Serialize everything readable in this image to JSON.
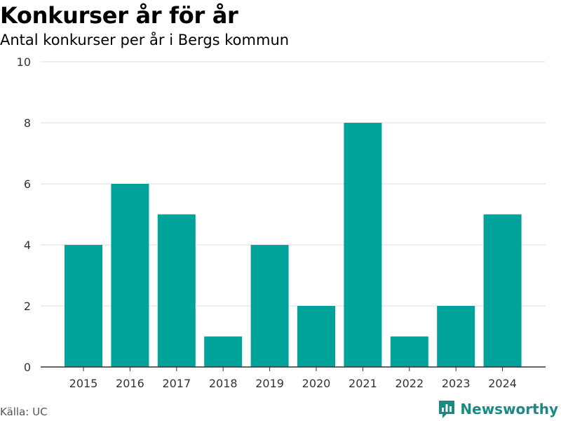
{
  "header": {
    "title": "Konkurser år för år",
    "subtitle": "Antal konkurser per år i Bergs kommun"
  },
  "footer": {
    "source": "Källa: UC",
    "brand": "Newsworthy",
    "brand_color": "#1a8a82"
  },
  "chart_data": {
    "type": "bar",
    "title": "Konkurser år för år",
    "subtitle": "Antal konkurser per år i Bergs kommun",
    "xlabel": "",
    "ylabel": "",
    "categories": [
      "2015",
      "2016",
      "2017",
      "2018",
      "2019",
      "2020",
      "2021",
      "2022",
      "2023",
      "2024"
    ],
    "values": [
      4,
      6,
      5,
      1,
      4,
      2,
      8,
      1,
      2,
      5
    ],
    "ylim": [
      0,
      10
    ],
    "yticks": [
      0,
      2,
      4,
      6,
      8,
      10
    ],
    "grid": true,
    "legend": "none",
    "bar_color": "#00a39a"
  }
}
